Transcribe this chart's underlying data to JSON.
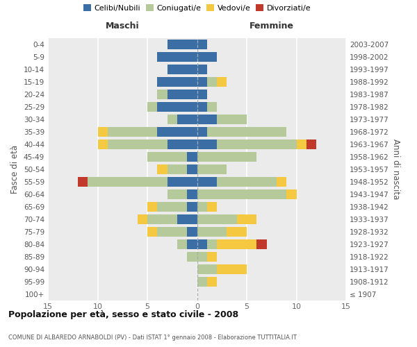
{
  "age_groups": [
    "100+",
    "95-99",
    "90-94",
    "85-89",
    "80-84",
    "75-79",
    "70-74",
    "65-69",
    "60-64",
    "55-59",
    "50-54",
    "45-49",
    "40-44",
    "35-39",
    "30-34",
    "25-29",
    "20-24",
    "15-19",
    "10-14",
    "5-9",
    "0-4"
  ],
  "birth_years": [
    "≤ 1907",
    "1908-1912",
    "1913-1917",
    "1918-1922",
    "1923-1927",
    "1928-1932",
    "1933-1937",
    "1938-1942",
    "1943-1947",
    "1948-1952",
    "1953-1957",
    "1958-1962",
    "1963-1967",
    "1968-1972",
    "1973-1977",
    "1978-1982",
    "1983-1987",
    "1988-1992",
    "1993-1997",
    "1998-2002",
    "2003-2007"
  ],
  "maschi": {
    "celibi": [
      0,
      0,
      0,
      0,
      1,
      1,
      2,
      1,
      1,
      3,
      1,
      1,
      3,
      4,
      2,
      4,
      3,
      4,
      3,
      4,
      3
    ],
    "coniugati": [
      0,
      0,
      0,
      1,
      1,
      3,
      3,
      3,
      2,
      8,
      2,
      4,
      6,
      5,
      1,
      1,
      1,
      0,
      0,
      0,
      0
    ],
    "vedovi": [
      0,
      0,
      0,
      0,
      0,
      1,
      1,
      1,
      0,
      0,
      1,
      0,
      1,
      1,
      0,
      0,
      0,
      0,
      0,
      0,
      0
    ],
    "divorziati": [
      0,
      0,
      0,
      0,
      0,
      0,
      0,
      0,
      0,
      1,
      0,
      0,
      0,
      0,
      0,
      0,
      0,
      0,
      0,
      0,
      0
    ]
  },
  "femmine": {
    "nubili": [
      0,
      0,
      0,
      0,
      1,
      0,
      0,
      0,
      0,
      2,
      0,
      0,
      2,
      1,
      2,
      1,
      1,
      1,
      1,
      2,
      1
    ],
    "coniugate": [
      0,
      1,
      2,
      1,
      1,
      3,
      4,
      1,
      9,
      6,
      3,
      6,
      8,
      8,
      3,
      1,
      0,
      1,
      0,
      0,
      0
    ],
    "vedove": [
      0,
      1,
      3,
      1,
      4,
      2,
      2,
      1,
      1,
      1,
      0,
      0,
      1,
      0,
      0,
      0,
      0,
      1,
      0,
      0,
      0
    ],
    "divorziate": [
      0,
      0,
      0,
      0,
      1,
      0,
      0,
      0,
      0,
      0,
      0,
      0,
      1,
      0,
      0,
      0,
      0,
      0,
      0,
      0,
      0
    ]
  },
  "colors": {
    "celibi": "#3a6ea5",
    "coniugati": "#b5c99a",
    "vedovi": "#f5c842",
    "divorziati": "#c0392b"
  },
  "xlim": 15,
  "title": "Popolazione per età, sesso e stato civile - 2008",
  "subtitle": "COMUNE DI ALBAREDO ARNABOLDI (PV) - Dati ISTAT 1° gennaio 2008 - Elaborazione TUTTITALIA.IT",
  "ylabel_left": "Fasce di età",
  "ylabel_right": "Anni di nascita",
  "maschi_label": "Maschi",
  "femmine_label": "Femmine",
  "legend_labels": [
    "Celibi/Nubili",
    "Coniugati/e",
    "Vedovi/e",
    "Divorziati/e"
  ],
  "bg_color": "#ebebeb",
  "grid_color": "#ffffff"
}
